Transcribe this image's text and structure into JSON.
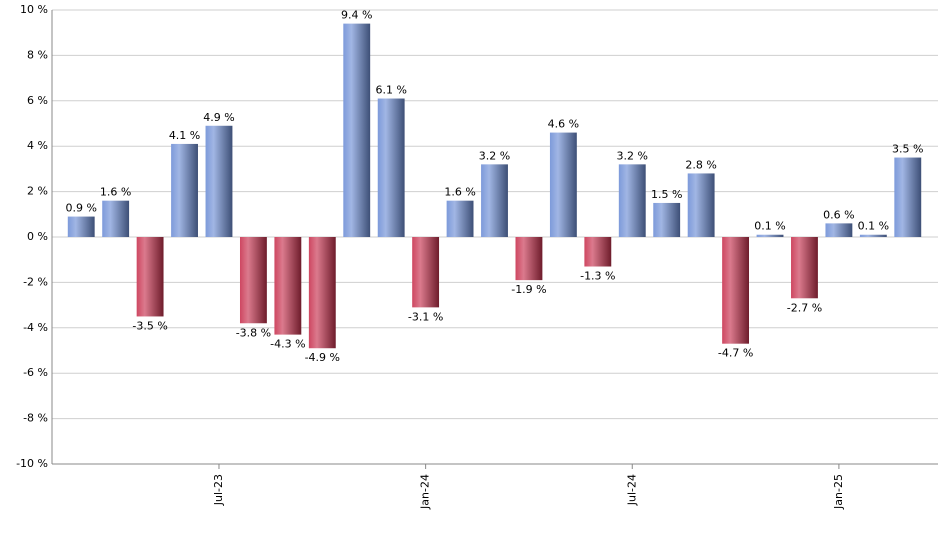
{
  "chart_data": {
    "type": "bar",
    "categories": [
      null,
      null,
      null,
      null,
      "Jul-23",
      null,
      null,
      null,
      null,
      null,
      "Jan-24",
      null,
      null,
      null,
      null,
      null,
      "Jul-24",
      null,
      null,
      null,
      null,
      null,
      "Jan-25",
      null,
      null
    ],
    "values": [
      0.9,
      1.6,
      -3.5,
      4.1,
      4.9,
      -3.8,
      -4.3,
      -4.9,
      9.4,
      6.1,
      -3.1,
      1.6,
      3.2,
      -1.9,
      4.6,
      -1.3,
      3.2,
      1.5,
      2.8,
      -4.7,
      0.1,
      -2.7,
      0.6,
      0.1,
      3.5
    ],
    "value_labels": [
      "0.9 %",
      "1.6 %",
      "-3.5 %",
      "4.1 %",
      "4.9 %",
      "-3.8 %",
      "-4.3 %",
      "-4.9 %",
      "9.4 %",
      "6.1 %",
      "-3.1 %",
      "1.6 %",
      "3.2 %",
      "-1.9 %",
      "4.6 %",
      "-1.3 %",
      "3.2 %",
      "1.5 %",
      "2.8 %",
      "-4.7 %",
      "0.1 %",
      "-2.7 %",
      "0.6 %",
      "0.1 %",
      "3.5 %"
    ],
    "positive_color": "#6f8fd6",
    "negative_color": "#c8334f",
    "ylim": [
      -10,
      10
    ],
    "yticks": [
      {
        "value": -10,
        "label": "-10 %"
      },
      {
        "value": -8,
        "label": "-8 %"
      },
      {
        "value": -6,
        "label": "-6 %"
      },
      {
        "value": -4,
        "label": "-4 %"
      },
      {
        "value": -2,
        "label": "-2 %"
      },
      {
        "value": 0,
        "label": "0 %"
      },
      {
        "value": 2,
        "label": "2 %"
      },
      {
        "value": 4,
        "label": "4 %"
      },
      {
        "value": 6,
        "label": "6 %"
      },
      {
        "value": 8,
        "label": "8 %"
      },
      {
        "value": 10,
        "label": "10 %"
      }
    ],
    "grid": true
  }
}
